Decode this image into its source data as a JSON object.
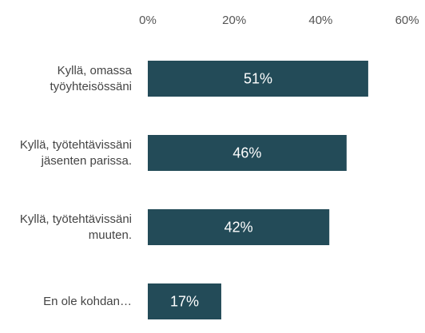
{
  "chart_data": {
    "type": "barh",
    "categories": [
      "Kyllä, omassa työyhteisössäni",
      "Kyllä, työtehtävissäni jäsenten parissa.",
      "Kyllä, työtehtävissäni muuten.",
      "En ole kohdan…"
    ],
    "values": [
      51,
      46,
      42,
      17
    ],
    "value_labels": [
      "51%",
      "46%",
      "42%",
      "17%"
    ],
    "color": "#234b58",
    "xlim": [
      0,
      60
    ],
    "xticks": [
      {
        "value": 0,
        "label": "0%"
      },
      {
        "value": 20,
        "label": "20%"
      },
      {
        "value": 40,
        "label": "40%"
      },
      {
        "value": 60,
        "label": "60%"
      }
    ],
    "grid": false
  }
}
